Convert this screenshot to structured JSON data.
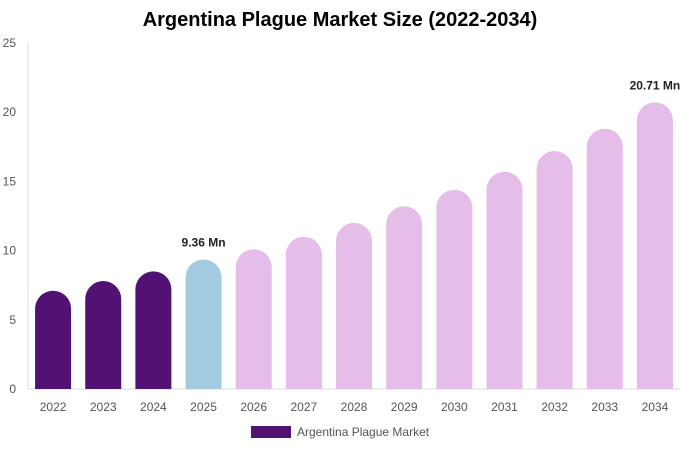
{
  "chart_data": {
    "type": "bar",
    "title": "Argentina Plague Market Size (2022-2034)",
    "xlabel": "",
    "ylabel": "",
    "ylim": [
      0,
      25
    ],
    "yticks": [
      0,
      5,
      10,
      15,
      20,
      25
    ],
    "grid": false,
    "legend_position": "bottom",
    "categories": [
      "2022",
      "2023",
      "2024",
      "2025",
      "2026",
      "2027",
      "2028",
      "2029",
      "2030",
      "2031",
      "2032",
      "2033",
      "2034"
    ],
    "series": [
      {
        "name": "Argentina Plague Market",
        "values": [
          7.1,
          7.8,
          8.5,
          9.36,
          10.1,
          11.0,
          12.0,
          13.2,
          14.4,
          15.7,
          17.2,
          18.8,
          20.71
        ],
        "bar_colors": [
          "#521274",
          "#521274",
          "#521274",
          "#a3cbdf",
          "#e5bde9",
          "#e5bde9",
          "#e5bde9",
          "#e5bde9",
          "#e5bde9",
          "#e5bde9",
          "#e5bde9",
          "#e5bde9",
          "#e5bde9"
        ]
      }
    ],
    "data_labels": [
      {
        "index": 3,
        "text": "9.36 Mn"
      },
      {
        "index": 12,
        "text": "20.71 Mn"
      }
    ],
    "legend_color": "#521274"
  }
}
